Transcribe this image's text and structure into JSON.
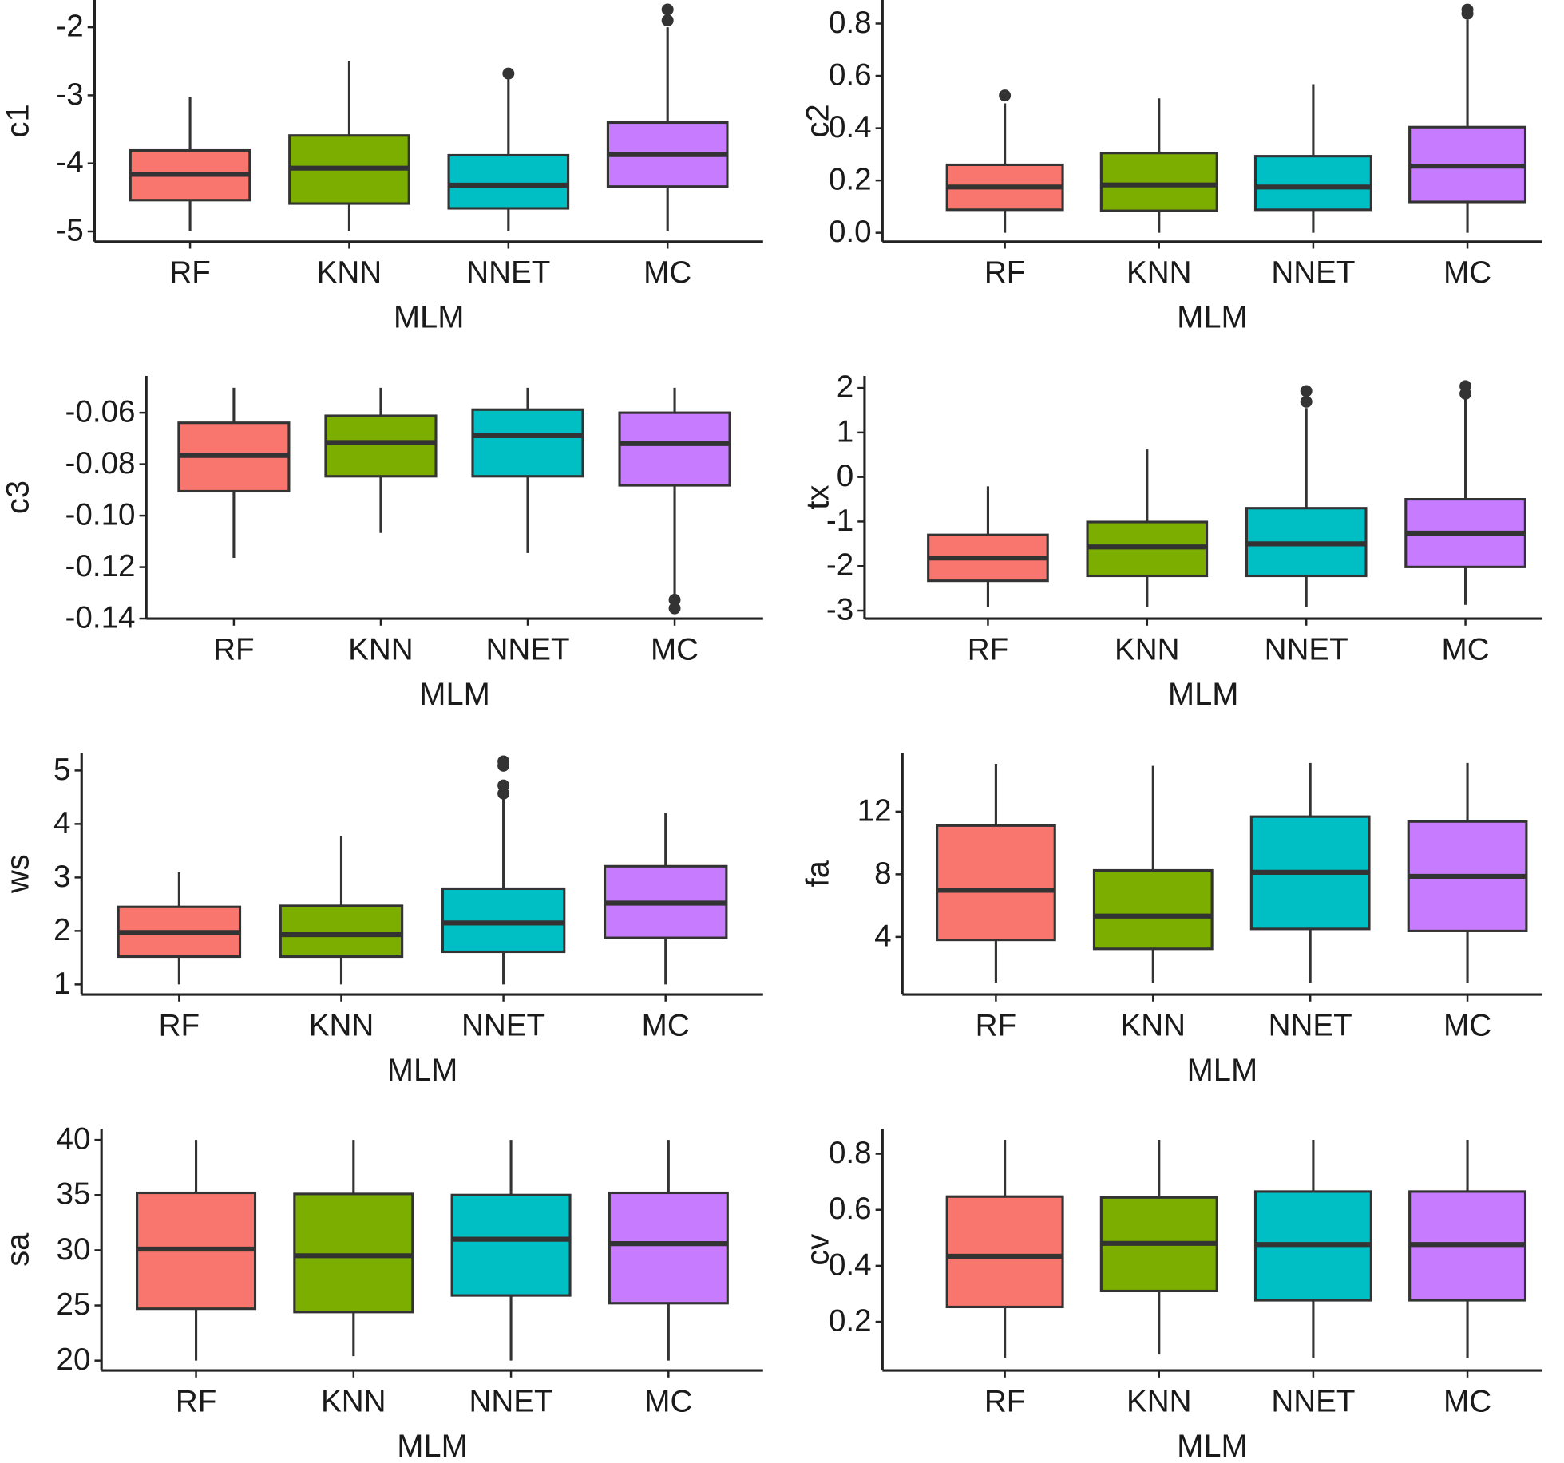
{
  "chart_data": [
    {
      "type": "box",
      "ylabel": "c1",
      "xlabel": "MLM",
      "categories": [
        "RF",
        "KNN",
        "NNET",
        "MC"
      ],
      "colors": [
        "#F8766D",
        "#7CAE00",
        "#00BFC4",
        "#C77CFF"
      ],
      "ylim": [
        -5.15,
        -1.6
      ],
      "yticks": [
        -2,
        -3,
        -4,
        -5
      ],
      "boxes": [
        {
          "whislo": -5.0,
          "q1": -4.54,
          "med": -4.16,
          "q3": -3.81,
          "whishi": -3.03,
          "outliers": []
        },
        {
          "whislo": -5.0,
          "q1": -4.59,
          "med": -4.07,
          "q3": -3.59,
          "whishi": -2.5,
          "outliers": []
        },
        {
          "whislo": -5.0,
          "q1": -4.66,
          "med": -4.32,
          "q3": -3.88,
          "whishi": -2.71,
          "outliers": [
            -2.68
          ]
        },
        {
          "whislo": -5.0,
          "q1": -4.34,
          "med": -3.87,
          "q3": -3.4,
          "whishi": -2.0,
          "outliers": [
            -1.9,
            -1.74
          ]
        }
      ]
    },
    {
      "type": "box",
      "ylabel": "c2",
      "xlabel": "MLM",
      "categories": [
        "RF",
        "KNN",
        "NNET",
        "MC"
      ],
      "colors": [
        "#F8766D",
        "#7CAE00",
        "#00BFC4",
        "#C77CFF"
      ],
      "ylim": [
        -0.034,
        0.89
      ],
      "yticks": [
        {
          "value": 0,
          "label": "0.0"
        },
        0.2,
        0.4,
        0.6,
        0.8
      ],
      "boxes": [
        {
          "whislo": 0.0,
          "q1": 0.088,
          "med": 0.175,
          "q3": 0.26,
          "whishi": 0.495,
          "outliers": [
            0.525
          ]
        },
        {
          "whislo": 0.0,
          "q1": 0.084,
          "med": 0.183,
          "q3": 0.305,
          "whishi": 0.514,
          "outliers": []
        },
        {
          "whislo": 0.0,
          "q1": 0.088,
          "med": 0.175,
          "q3": 0.293,
          "whishi": 0.568,
          "outliers": []
        },
        {
          "whislo": 0.0,
          "q1": 0.118,
          "med": 0.255,
          "q3": 0.404,
          "whishi": 0.815,
          "outliers": [
            0.838,
            0.853
          ]
        }
      ]
    },
    {
      "type": "box",
      "ylabel": "c3",
      "xlabel": "MLM",
      "categories": [
        "RF",
        "KNN",
        "NNET",
        "MC"
      ],
      "colors": [
        "#F8766D",
        "#7CAE00",
        "#00BFC4",
        "#C77CFF"
      ],
      "ylim": [
        -0.14,
        -0.0457
      ],
      "yticks": [
        -0.06,
        -0.08,
        {
          "value": -0.1,
          "label": "-0.10"
        },
        -0.12,
        -0.14
      ],
      "boxes": [
        {
          "whislo": -0.1164,
          "q1": -0.0905,
          "med": -0.0766,
          "q3": -0.0639,
          "whishi": -0.0503,
          "outliers": []
        },
        {
          "whislo": -0.1067,
          "q1": -0.0847,
          "med": -0.0716,
          "q3": -0.0612,
          "whishi": -0.0503,
          "outliers": []
        },
        {
          "whislo": -0.1145,
          "q1": -0.0847,
          "med": -0.0689,
          "q3": -0.0588,
          "whishi": -0.0503,
          "outliers": []
        },
        {
          "whislo": -0.1315,
          "q1": -0.0882,
          "med": -0.072,
          "q3": -0.06,
          "whishi": -0.0503,
          "outliers": [
            -0.1327,
            -0.136
          ]
        }
      ]
    },
    {
      "type": "box",
      "ylabel": "tx",
      "xlabel": "MLM",
      "categories": [
        "RF",
        "KNN",
        "NNET",
        "MC"
      ],
      "colors": [
        "#F8766D",
        "#7CAE00",
        "#00BFC4",
        "#C77CFF"
      ],
      "ylim": [
        -3.18,
        2.27
      ],
      "yticks": [
        2,
        1,
        0,
        -1,
        -2,
        -3
      ],
      "boxes": [
        {
          "whislo": -2.91,
          "q1": -2.33,
          "med": -1.82,
          "q3": -1.3,
          "whishi": -0.21,
          "outliers": []
        },
        {
          "whislo": -2.91,
          "q1": -2.22,
          "med": -1.57,
          "q3": -1.01,
          "whishi": 0.62,
          "outliers": []
        },
        {
          "whislo": -2.91,
          "q1": -2.22,
          "med": -1.5,
          "q3": -0.7,
          "whishi": 1.55,
          "outliers": [
            1.69,
            1.93
          ]
        },
        {
          "whislo": -2.87,
          "q1": -2.02,
          "med": -1.26,
          "q3": -0.5,
          "whishi": 1.78,
          "outliers": [
            1.87,
            2.04
          ]
        }
      ]
    },
    {
      "type": "box",
      "ylabel": "ws",
      "xlabel": "MLM",
      "categories": [
        "RF",
        "KNN",
        "NNET",
        "MC"
      ],
      "colors": [
        "#F8766D",
        "#7CAE00",
        "#00BFC4",
        "#C77CFF"
      ],
      "ylim": [
        0.81,
        5.33
      ],
      "yticks": [
        5,
        4,
        3,
        2,
        1
      ],
      "boxes": [
        {
          "whislo": 1.0,
          "q1": 1.52,
          "med": 1.97,
          "q3": 2.45,
          "whishi": 3.1,
          "outliers": []
        },
        {
          "whislo": 1.0,
          "q1": 1.52,
          "med": 1.93,
          "q3": 2.47,
          "whishi": 3.77,
          "outliers": []
        },
        {
          "whislo": 1.0,
          "q1": 1.61,
          "med": 2.15,
          "q3": 2.79,
          "whishi": 4.48,
          "outliers": [
            4.57,
            4.72,
            5.09,
            5.17
          ]
        },
        {
          "whislo": 1.0,
          "q1": 1.87,
          "med": 2.52,
          "q3": 3.21,
          "whishi": 4.2,
          "outliers": []
        }
      ]
    },
    {
      "type": "box",
      "ylabel": "fa",
      "xlabel": "MLM",
      "categories": [
        "RF",
        "KNN",
        "NNET",
        "MC"
      ],
      "colors": [
        "#F8766D",
        "#7CAE00",
        "#00BFC4",
        "#C77CFF"
      ],
      "ylim": [
        0.32,
        15.75
      ],
      "yticks": [
        12,
        8,
        4
      ],
      "boxes": [
        {
          "whislo": 1.08,
          "q1": 3.81,
          "med": 6.98,
          "q3": 11.11,
          "whishi": 15.05,
          "outliers": []
        },
        {
          "whislo": 1.08,
          "q1": 3.24,
          "med": 5.33,
          "q3": 8.25,
          "whishi": 14.92,
          "outliers": []
        },
        {
          "whislo": 1.08,
          "q1": 4.51,
          "med": 8.13,
          "q3": 11.68,
          "whishi": 15.11,
          "outliers": []
        },
        {
          "whislo": 1.08,
          "q1": 4.38,
          "med": 7.87,
          "q3": 11.37,
          "whishi": 15.11,
          "outliers": []
        }
      ]
    },
    {
      "type": "box",
      "ylabel": "sa",
      "xlabel": "MLM",
      "categories": [
        "RF",
        "KNN",
        "NNET",
        "MC"
      ],
      "colors": [
        "#F8766D",
        "#7CAE00",
        "#00BFC4",
        "#C77CFF"
      ],
      "ylim": [
        19.1,
        41.0
      ],
      "yticks": [
        40,
        35,
        30,
        25,
        20
      ],
      "boxes": [
        {
          "whislo": 20.0,
          "q1": 24.7,
          "med": 30.1,
          "q3": 35.2,
          "whishi": 40.0,
          "outliers": []
        },
        {
          "whislo": 20.4,
          "q1": 24.4,
          "med": 29.5,
          "q3": 35.1,
          "whishi": 40.0,
          "outliers": []
        },
        {
          "whislo": 20.0,
          "q1": 25.9,
          "med": 31.0,
          "q3": 35.0,
          "whishi": 40.0,
          "outliers": []
        },
        {
          "whislo": 20.0,
          "q1": 25.2,
          "med": 30.6,
          "q3": 35.2,
          "whishi": 40.0,
          "outliers": []
        }
      ]
    },
    {
      "type": "box",
      "ylabel": "cv",
      "xlabel": "MLM",
      "categories": [
        "RF",
        "KNN",
        "NNET",
        "MC"
      ],
      "colors": [
        "#F8766D",
        "#7CAE00",
        "#00BFC4",
        "#C77CFF"
      ],
      "ylim": [
        0.026,
        0.889
      ],
      "yticks": [
        0.8,
        0.6,
        0.4,
        0.2
      ],
      "boxes": [
        {
          "whislo": 0.072,
          "q1": 0.253,
          "med": 0.434,
          "q3": 0.647,
          "whishi": 0.85,
          "outliers": []
        },
        {
          "whislo": 0.083,
          "q1": 0.31,
          "med": 0.48,
          "q3": 0.644,
          "whishi": 0.85,
          "outliers": []
        },
        {
          "whislo": 0.072,
          "q1": 0.277,
          "med": 0.476,
          "q3": 0.665,
          "whishi": 0.85,
          "outliers": []
        },
        {
          "whislo": 0.072,
          "q1": 0.277,
          "med": 0.476,
          "q3": 0.665,
          "whishi": 0.85,
          "outliers": []
        }
      ]
    }
  ]
}
